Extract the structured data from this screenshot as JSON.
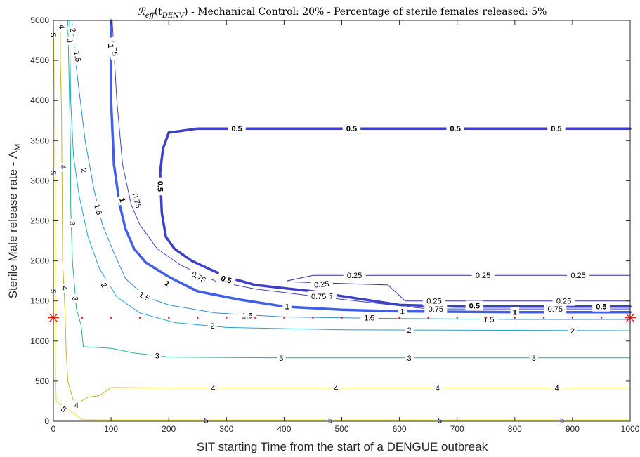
{
  "chart_data": {
    "type": "contour",
    "title": "ℛ_eff(t_DENV) - Mechanical Control: 20% - Percentage of sterile females released: 5%",
    "title_parts": {
      "r_symbol": "ℛ",
      "r_sub": "eff",
      "t_open": "(t",
      "t_sub": "DENV",
      "t_close": ")",
      "rest": " - Mechanical Control: 20% - Percentage of sterile females released: 5%"
    },
    "xlabel": "SIT starting Time from the start of a DENGUE outbreak",
    "ylabel_main": "Sterile Male release rate - Λ",
    "ylabel_sub": "M",
    "xlim": [
      0,
      1000
    ],
    "ylim": [
      0,
      5000
    ],
    "xticks": [
      0,
      100,
      200,
      300,
      400,
      500,
      600,
      700,
      800,
      900,
      1000
    ],
    "yticks": [
      0,
      500,
      1000,
      1500,
      2000,
      2500,
      3000,
      3500,
      4000,
      4500,
      5000
    ],
    "grid": false,
    "colors": {
      "0.25": "#3a2aa8",
      "0.5": "#3d3fc8",
      "0.75": "#4446b8",
      "1": "#3f5fe8",
      "1.5": "#2f8fd8",
      "2": "#1fa6d6",
      "3": "#1fb49c",
      "4": "#c8b420",
      "5": "#f2e21e"
    },
    "contours": [
      {
        "level": "0.25",
        "width": 1,
        "points": [
          [
            405,
            1750
          ],
          [
            450,
            1820
          ],
          [
            1000,
            1820
          ]
        ]
      },
      {
        "level": "0.25",
        "width": 1,
        "points": [
          [
            405,
            1740
          ],
          [
            580,
            1700
          ],
          [
            610,
            1500
          ],
          [
            1000,
            1500
          ]
        ]
      },
      {
        "level": "0.5",
        "width": 3.5,
        "points": [
          [
            200,
            3600
          ],
          [
            250,
            3650
          ],
          [
            1000,
            3650
          ]
        ]
      },
      {
        "level": "0.5",
        "width": 3.5,
        "points": [
          [
            200,
            3600
          ],
          [
            190,
            3400
          ],
          [
            185,
            3100
          ],
          [
            188,
            2600
          ],
          [
            195,
            2300
          ],
          [
            210,
            2150
          ],
          [
            240,
            2000
          ],
          [
            300,
            1800
          ],
          [
            350,
            1700
          ],
          [
            450,
            1620
          ],
          [
            500,
            1560
          ],
          [
            600,
            1450
          ],
          [
            700,
            1430
          ],
          [
            1000,
            1430
          ]
        ]
      },
      {
        "level": "0.75",
        "width": 1,
        "points": [
          [
            102,
            5000
          ],
          [
            110,
            4000
          ],
          [
            120,
            3200
          ],
          [
            135,
            2700
          ],
          [
            150,
            2450
          ],
          [
            180,
            2150
          ],
          [
            220,
            1950
          ],
          [
            280,
            1750
          ],
          [
            350,
            1650
          ],
          [
            450,
            1560
          ],
          [
            550,
            1480
          ],
          [
            650,
            1400
          ],
          [
            1000,
            1400
          ]
        ]
      },
      {
        "level": "1",
        "width": 3.5,
        "points": [
          [
            100,
            5000
          ],
          [
            100,
            4000
          ],
          [
            105,
            3200
          ],
          [
            115,
            2700
          ],
          [
            125,
            2400
          ],
          [
            140,
            2150
          ],
          [
            160,
            1980
          ],
          [
            200,
            1800
          ],
          [
            250,
            1620
          ],
          [
            320,
            1520
          ],
          [
            400,
            1430
          ],
          [
            500,
            1390
          ],
          [
            600,
            1370
          ],
          [
            800,
            1360
          ],
          [
            1000,
            1360
          ]
        ]
      },
      {
        "level": "1.5",
        "width": 1,
        "points": [
          [
            32,
            5000
          ],
          [
            40,
            4400
          ],
          [
            55,
            3500
          ],
          [
            70,
            2900
          ],
          [
            85,
            2450
          ],
          [
            105,
            2100
          ],
          [
            125,
            1780
          ],
          [
            160,
            1550
          ],
          [
            200,
            1450
          ],
          [
            280,
            1350
          ],
          [
            400,
            1300
          ],
          [
            600,
            1280
          ],
          [
            800,
            1270
          ],
          [
            1000,
            1270
          ]
        ]
      },
      {
        "level": "2",
        "width": 1,
        "points": [
          [
            28,
            5000
          ],
          [
            30,
            4000
          ],
          [
            35,
            3300
          ],
          [
            45,
            2800
          ],
          [
            60,
            2300
          ],
          [
            80,
            1900
          ],
          [
            110,
            1550
          ],
          [
            150,
            1350
          ],
          [
            210,
            1230
          ],
          [
            300,
            1170
          ],
          [
            500,
            1140
          ],
          [
            1000,
            1130
          ]
        ]
      },
      {
        "level": "3",
        "width": 1,
        "points": [
          [
            25,
            5000
          ],
          [
            28,
            4000
          ],
          [
            30,
            3300
          ],
          [
            30,
            2700
          ],
          [
            33,
            2000
          ],
          [
            40,
            1400
          ],
          [
            48,
            1200
          ],
          [
            52,
            930
          ],
          [
            100,
            910
          ],
          [
            140,
            850
          ],
          [
            200,
            800
          ],
          [
            400,
            790
          ],
          [
            1000,
            790
          ]
        ]
      },
      {
        "level": "4",
        "width": 1,
        "points": [
          [
            12,
            5000
          ],
          [
            12,
            4500
          ],
          [
            14,
            3900
          ],
          [
            15,
            3000
          ],
          [
            16,
            2000
          ],
          [
            20,
            1400
          ],
          [
            22,
            900
          ],
          [
            25,
            500
          ],
          [
            35,
            250
          ],
          [
            40,
            230
          ],
          [
            48,
            250
          ],
          [
            60,
            300
          ],
          [
            80,
            320
          ],
          [
            100,
            420
          ],
          [
            200,
            415
          ],
          [
            1000,
            415
          ]
        ]
      },
      {
        "level": "5",
        "width": 1,
        "points": [
          [
            0,
            5000
          ],
          [
            2,
            4000
          ],
          [
            3,
            2500
          ],
          [
            3,
            1500
          ],
          [
            3,
            1000
          ],
          [
            4,
            500
          ],
          [
            5,
            250
          ],
          [
            15,
            200
          ],
          [
            35,
            100
          ],
          [
            50,
            20
          ],
          [
            100,
            15
          ],
          [
            1000,
            15
          ]
        ]
      }
    ],
    "contour_labels": [
      {
        "text": "0.5",
        "x": 318,
        "y": 3650,
        "bold": true,
        "rot": 0
      },
      {
        "text": "0.5",
        "x": 517,
        "y": 3650,
        "bold": true,
        "rot": 0
      },
      {
        "text": "0.5",
        "x": 697,
        "y": 3650,
        "bold": true,
        "rot": 0
      },
      {
        "text": "0.5",
        "x": 872,
        "y": 3650,
        "bold": true,
        "rot": 0
      },
      {
        "text": "0.5",
        "x": 186,
        "y": 2930,
        "bold": true,
        "rot": 90
      },
      {
        "text": "0.5",
        "x": 300,
        "y": 1770,
        "bold": true,
        "rot": 18
      },
      {
        "text": "0.5",
        "x": 475,
        "y": 1570,
        "bold": true,
        "rot": 8
      },
      {
        "text": "0.5",
        "x": 730,
        "y": 1440,
        "bold": true,
        "rot": 0
      },
      {
        "text": "0.5",
        "x": 950,
        "y": 1430,
        "bold": true,
        "rot": 0
      },
      {
        "text": "0.25",
        "x": 522,
        "y": 1820,
        "bold": false,
        "rot": 0
      },
      {
        "text": "0.25",
        "x": 745,
        "y": 1820,
        "bold": false,
        "rot": 0
      },
      {
        "text": "0.25",
        "x": 910,
        "y": 1820,
        "bold": false,
        "rot": 0
      },
      {
        "text": "0.25",
        "x": 465,
        "y": 1710,
        "bold": false,
        "rot": -5
      },
      {
        "text": "0.25",
        "x": 660,
        "y": 1500,
        "bold": false,
        "rot": 0
      },
      {
        "text": "0.25",
        "x": 885,
        "y": 1500,
        "bold": false,
        "rot": 0
      },
      {
        "text": "0.75",
        "x": 105,
        "y": 4650,
        "bold": false,
        "rot": 80
      },
      {
        "text": "0.75",
        "x": 145,
        "y": 2750,
        "bold": false,
        "rot": 75
      },
      {
        "text": "0.75",
        "x": 252,
        "y": 1800,
        "bold": false,
        "rot": 30
      },
      {
        "text": "0.75",
        "x": 460,
        "y": 1560,
        "bold": false,
        "rot": 0
      },
      {
        "text": "0.75",
        "x": 663,
        "y": 1400,
        "bold": false,
        "rot": 0
      },
      {
        "text": "0.75",
        "x": 870,
        "y": 1400,
        "bold": false,
        "rot": 0
      },
      {
        "text": "1",
        "x": 100,
        "y": 4680,
        "bold": true,
        "rot": 90
      },
      {
        "text": "1",
        "x": 120,
        "y": 2760,
        "bold": true,
        "rot": 75
      },
      {
        "text": "1",
        "x": 198,
        "y": 1720,
        "bold": true,
        "rot": 35
      },
      {
        "text": "1",
        "x": 405,
        "y": 1430,
        "bold": true,
        "rot": 0
      },
      {
        "text": "1",
        "x": 605,
        "y": 1370,
        "bold": true,
        "rot": 0
      },
      {
        "text": "1",
        "x": 800,
        "y": 1360,
        "bold": true,
        "rot": 0
      },
      {
        "text": "1.5",
        "x": 42,
        "y": 4550,
        "bold": false,
        "rot": 80
      },
      {
        "text": "1.5",
        "x": 78,
        "y": 2640,
        "bold": false,
        "rot": 75
      },
      {
        "text": "1.5",
        "x": 158,
        "y": 1560,
        "bold": false,
        "rot": 30
      },
      {
        "text": "1.5",
        "x": 336,
        "y": 1320,
        "bold": false,
        "rot": 0
      },
      {
        "text": "1.5",
        "x": 548,
        "y": 1290,
        "bold": false,
        "rot": 0
      },
      {
        "text": "1.5",
        "x": 755,
        "y": 1270,
        "bold": false,
        "rot": 0
      },
      {
        "text": "2",
        "x": 34,
        "y": 4880,
        "bold": false,
        "rot": 80
      },
      {
        "text": "2",
        "x": 53,
        "y": 3130,
        "bold": false,
        "rot": 80
      },
      {
        "text": "2",
        "x": 88,
        "y": 1700,
        "bold": false,
        "rot": 60
      },
      {
        "text": "2",
        "x": 276,
        "y": 1190,
        "bold": false,
        "rot": 0
      },
      {
        "text": "2",
        "x": 617,
        "y": 1140,
        "bold": false,
        "rot": 0
      },
      {
        "text": "2",
        "x": 900,
        "y": 1130,
        "bold": false,
        "rot": 0
      },
      {
        "text": "3",
        "x": 29,
        "y": 4750,
        "bold": false,
        "rot": 85
      },
      {
        "text": "3",
        "x": 33,
        "y": 2470,
        "bold": false,
        "rot": 85
      },
      {
        "text": "3",
        "x": 38,
        "y": 1530,
        "bold": false,
        "rot": 80
      },
      {
        "text": "3",
        "x": 180,
        "y": 820,
        "bold": false,
        "rot": 0
      },
      {
        "text": "3",
        "x": 395,
        "y": 790,
        "bold": false,
        "rot": 0
      },
      {
        "text": "3",
        "x": 617,
        "y": 790,
        "bold": false,
        "rot": 0
      },
      {
        "text": "3",
        "x": 833,
        "y": 790,
        "bold": false,
        "rot": 0
      },
      {
        "text": "4",
        "x": 15,
        "y": 4920,
        "bold": false,
        "rot": 85
      },
      {
        "text": "4",
        "x": 17,
        "y": 3170,
        "bold": false,
        "rot": 85
      },
      {
        "text": "4",
        "x": 20,
        "y": 1660,
        "bold": false,
        "rot": 85
      },
      {
        "text": "4",
        "x": 40,
        "y": 200,
        "bold": false,
        "rot": 0
      },
      {
        "text": "4",
        "x": 277,
        "y": 415,
        "bold": false,
        "rot": 0
      },
      {
        "text": "4",
        "x": 490,
        "y": 415,
        "bold": false,
        "rot": 0
      },
      {
        "text": "4",
        "x": 666,
        "y": 415,
        "bold": false,
        "rot": 0
      },
      {
        "text": "4",
        "x": 873,
        "y": 415,
        "bold": false,
        "rot": 0
      },
      {
        "text": "5",
        "x": 0,
        "y": 4820,
        "bold": false,
        "rot": 90
      },
      {
        "text": "5",
        "x": 0,
        "y": 3100,
        "bold": false,
        "rot": 90
      },
      {
        "text": "5",
        "x": 0,
        "y": 1620,
        "bold": false,
        "rot": 90
      },
      {
        "text": "5",
        "x": 18,
        "y": 150,
        "bold": false,
        "rot": 40
      },
      {
        "text": "5",
        "x": 265,
        "y": 15,
        "bold": false,
        "rot": 0
      },
      {
        "text": "5",
        "x": 480,
        "y": 15,
        "bold": false,
        "rot": 0
      },
      {
        "text": "5",
        "x": 670,
        "y": 15,
        "bold": false,
        "rot": 0
      },
      {
        "text": "5",
        "x": 882,
        "y": 15,
        "bold": false,
        "rot": 0
      }
    ],
    "markers": {
      "stars": [
        [
          0,
          1290
        ],
        [
          1000,
          1290
        ]
      ],
      "dots": [
        [
          50,
          1290
        ],
        [
          100,
          1290
        ],
        [
          150,
          1290
        ],
        [
          200,
          1290
        ],
        [
          250,
          1290
        ],
        [
          300,
          1290
        ],
        [
          350,
          1290
        ],
        [
          400,
          1290
        ],
        [
          450,
          1290
        ],
        [
          500,
          1290
        ],
        [
          550,
          1290
        ],
        [
          600,
          1290
        ],
        [
          650,
          1290
        ],
        [
          700,
          1290
        ],
        [
          750,
          1290
        ],
        [
          800,
          1290
        ],
        [
          850,
          1290
        ],
        [
          900,
          1290
        ],
        [
          950,
          1290
        ]
      ],
      "color": "#ff0000"
    }
  }
}
